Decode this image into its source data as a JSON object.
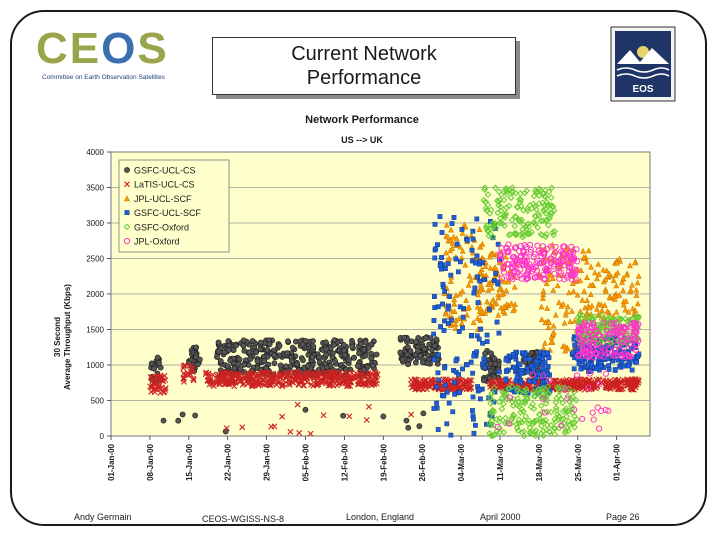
{
  "header": {
    "logo_text": "CEOS",
    "logo_subtitle": "Committee on Earth Observation Satellites",
    "title_line1": "Current Network",
    "title_line2": "Performance",
    "eos_logo_text": "EOS"
  },
  "footer": {
    "author": "Andy Germain",
    "doc_id": "CEOS-WGISS-NS-8",
    "location": "London, England",
    "date": "April 2000",
    "page": "Page 26"
  },
  "colors": {
    "plot_bg": "#ffffcc",
    "GSFC-UCL-CS": "#555555",
    "LaTIS-UCL-CS": "#cc2222",
    "JPL-UCL-SCF": "#ff9900",
    "GSFC-UCL-SCF": "#1f5fd6",
    "GSFC-Oxford": "#66cc33",
    "JPL-Oxford": "#ff33cc"
  },
  "chart_data": {
    "type": "scatter",
    "title": "Network Performance",
    "subtitle": "US --> UK",
    "ylabel_line1": "30 Second",
    "ylabel_line2": "Average Throughput (Kbps)",
    "xlabel": "",
    "ylim": [
      0,
      4000
    ],
    "yticks": [
      "0",
      "500",
      "1000",
      "1500",
      "2000",
      "2500",
      "3000",
      "3500",
      "4000"
    ],
    "xlim": [
      "2000-01-01",
      "2000-04-07"
    ],
    "xticks": [
      "01-Jan-00",
      "08-Jan-00",
      "15-Jan-00",
      "22-Jan-00",
      "29-Jan-00",
      "05-Feb-00",
      "12-Feb-00",
      "19-Feb-00",
      "26-Feb-00",
      "04-Mar-00",
      "11-Mar-00",
      "18-Mar-00",
      "25-Mar-00",
      "01-Apr-00"
    ],
    "grid": "horizontal",
    "legend_position": "top-left",
    "series": [
      {
        "name": "GSFC-UCL-CS",
        "marker": "circle",
        "clusters": [
          {
            "from": "2000-01-08",
            "to": "2000-01-10",
            "ymin": 750,
            "ymax": 1150
          },
          {
            "from": "2000-01-15",
            "to": "2000-01-17",
            "ymin": 900,
            "ymax": 1250
          },
          {
            "from": "2000-01-20",
            "to": "2000-02-18",
            "ymin": 850,
            "ymax": 1350
          },
          {
            "from": "2000-02-22",
            "to": "2000-02-29",
            "ymin": 1000,
            "ymax": 1400
          },
          {
            "from": "2000-03-08",
            "to": "2000-03-11",
            "ymin": 750,
            "ymax": 1200
          },
          {
            "from": "2000-03-15",
            "to": "2000-03-18",
            "ymin": 850,
            "ymax": 1200
          },
          {
            "from": "2000-01-09",
            "to": "2000-02-28",
            "ymin": 50,
            "ymax": 400,
            "count": 12
          }
        ]
      },
      {
        "name": "LaTIS-UCL-CS",
        "marker": "x",
        "clusters": [
          {
            "from": "2000-01-08",
            "to": "2000-01-11",
            "ymin": 600,
            "ymax": 850
          },
          {
            "from": "2000-01-14",
            "to": "2000-01-16",
            "ymin": 750,
            "ymax": 1000
          },
          {
            "from": "2000-01-18",
            "to": "2000-02-18",
            "ymin": 700,
            "ymax": 900
          },
          {
            "from": "2000-02-24",
            "to": "2000-03-06",
            "ymin": 650,
            "ymax": 800
          },
          {
            "from": "2000-03-09",
            "to": "2000-04-05",
            "ymin": 650,
            "ymax": 800
          },
          {
            "from": "2000-01-09",
            "to": "2000-02-25",
            "ymin": 20,
            "ymax": 450,
            "count": 14
          }
        ]
      },
      {
        "name": "JPL-UCL-SCF",
        "marker": "triangle",
        "clusters": [
          {
            "from": "2000-03-01",
            "to": "2000-03-08",
            "ymin": 1500,
            "ymax": 3000
          },
          {
            "from": "2000-03-07",
            "to": "2000-03-14",
            "ymin": 1700,
            "ymax": 2600
          },
          {
            "from": "2000-03-18",
            "to": "2000-03-27",
            "ymin": 1200,
            "ymax": 2700
          },
          {
            "from": "2000-03-27",
            "to": "2000-04-05",
            "ymin": 1300,
            "ymax": 2500
          }
        ]
      },
      {
        "name": "GSFC-UCL-SCF",
        "marker": "square",
        "clusters": [
          {
            "from": "2000-02-28",
            "to": "2000-03-11",
            "ymin": 0,
            "ymax": 3100
          },
          {
            "from": "2000-03-12",
            "to": "2000-03-20",
            "ymin": 600,
            "ymax": 1200
          },
          {
            "from": "2000-03-24",
            "to": "2000-04-05",
            "ymin": 900,
            "ymax": 1400
          }
        ]
      },
      {
        "name": "GSFC-Oxford",
        "marker": "diamond",
        "clusters": [
          {
            "from": "2000-03-08",
            "to": "2000-03-21",
            "ymin": 2800,
            "ymax": 3500
          },
          {
            "from": "2000-03-09",
            "to": "2000-03-25",
            "ymin": 0,
            "ymax": 700
          },
          {
            "from": "2000-03-25",
            "to": "2000-04-05",
            "ymin": 1300,
            "ymax": 1700
          }
        ]
      },
      {
        "name": "JPL-Oxford",
        "marker": "circle-open",
        "clusters": [
          {
            "from": "2000-03-11",
            "to": "2000-03-25",
            "ymin": 2200,
            "ymax": 2700
          },
          {
            "from": "2000-03-25",
            "to": "2000-04-05",
            "ymin": 1100,
            "ymax": 1600
          },
          {
            "from": "2000-03-10",
            "to": "2000-04-01",
            "ymin": 100,
            "ymax": 900,
            "count": 25
          }
        ]
      }
    ]
  }
}
